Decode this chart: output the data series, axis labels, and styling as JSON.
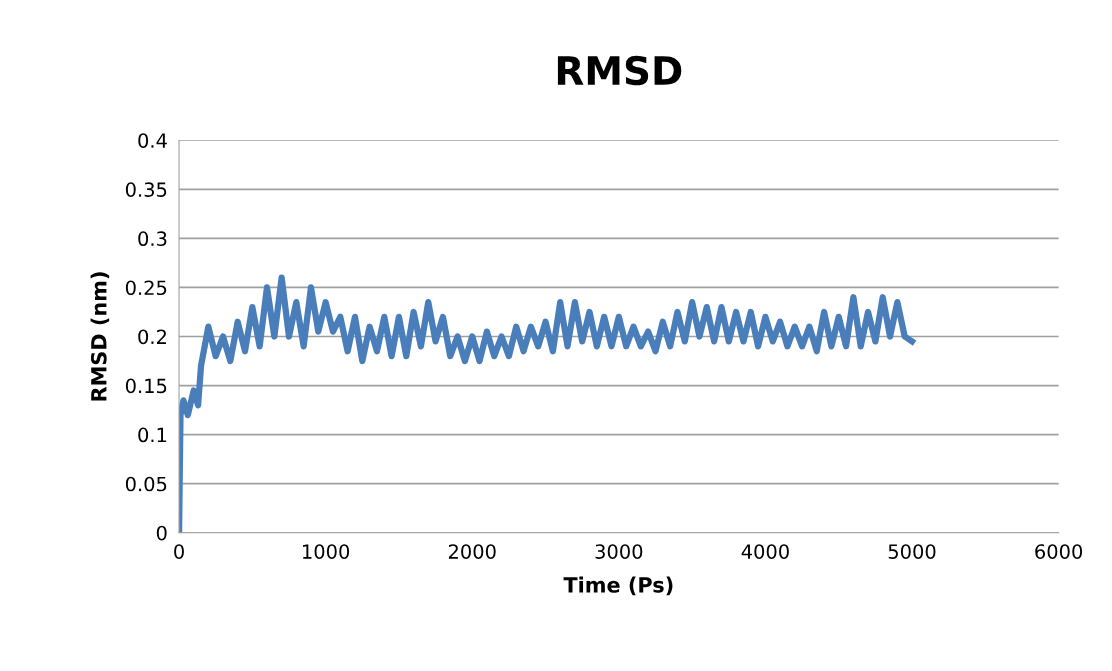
{
  "chart_data": {
    "type": "line",
    "title": "RMSD",
    "xlabel": "Time (Ps)",
    "ylabel": "RMSD (nm)",
    "x": [
      0,
      10,
      30,
      60,
      100,
      130,
      150,
      200,
      250,
      300,
      350,
      400,
      450,
      500,
      550,
      600,
      650,
      700,
      750,
      800,
      850,
      900,
      950,
      1000,
      1050,
      1100,
      1150,
      1200,
      1250,
      1300,
      1350,
      1400,
      1450,
      1500,
      1550,
      1600,
      1650,
      1700,
      1750,
      1800,
      1850,
      1900,
      1950,
      2000,
      2050,
      2100,
      2150,
      2200,
      2250,
      2300,
      2350,
      2400,
      2450,
      2500,
      2550,
      2600,
      2650,
      2700,
      2750,
      2800,
      2850,
      2900,
      2950,
      3000,
      3050,
      3100,
      3150,
      3200,
      3250,
      3300,
      3350,
      3400,
      3450,
      3500,
      3550,
      3600,
      3650,
      3700,
      3750,
      3800,
      3850,
      3900,
      3950,
      4000,
      4050,
      4100,
      4150,
      4200,
      4250,
      4300,
      4350,
      4400,
      4450,
      4500,
      4550,
      4600,
      4650,
      4700,
      4750,
      4800,
      4850,
      4900,
      4950,
      5000
    ],
    "series": [
      {
        "color": "#4a7ebb",
        "values": [
          0,
          0.12,
          0.135,
          0.12,
          0.145,
          0.13,
          0.17,
          0.21,
          0.18,
          0.2,
          0.175,
          0.215,
          0.185,
          0.23,
          0.19,
          0.25,
          0.2,
          0.26,
          0.2,
          0.235,
          0.19,
          0.25,
          0.205,
          0.235,
          0.205,
          0.22,
          0.185,
          0.22,
          0.175,
          0.21,
          0.185,
          0.22,
          0.18,
          0.22,
          0.18,
          0.225,
          0.19,
          0.235,
          0.195,
          0.22,
          0.18,
          0.2,
          0.175,
          0.2,
          0.175,
          0.205,
          0.18,
          0.2,
          0.18,
          0.21,
          0.185,
          0.21,
          0.19,
          0.215,
          0.185,
          0.235,
          0.19,
          0.235,
          0.195,
          0.225,
          0.19,
          0.22,
          0.19,
          0.22,
          0.19,
          0.21,
          0.19,
          0.205,
          0.185,
          0.215,
          0.19,
          0.225,
          0.195,
          0.235,
          0.2,
          0.23,
          0.195,
          0.23,
          0.195,
          0.225,
          0.195,
          0.225,
          0.19,
          0.22,
          0.195,
          0.215,
          0.19,
          0.21,
          0.19,
          0.21,
          0.185,
          0.225,
          0.19,
          0.22,
          0.19,
          0.24,
          0.19,
          0.225,
          0.195,
          0.24,
          0.2,
          0.235,
          0.2,
          0.195
        ]
      }
    ],
    "xlim": [
      0,
      6000
    ],
    "xticks": [
      0,
      1000,
      2000,
      3000,
      4000,
      5000,
      6000
    ],
    "ylim": [
      0,
      0.4
    ],
    "yticks": [
      0,
      0.05,
      0.1,
      0.15,
      0.2,
      0.25,
      0.3,
      0.35,
      0.4
    ],
    "grid": "y",
    "legend": false,
    "marker": "none",
    "line_style": "solid"
  }
}
